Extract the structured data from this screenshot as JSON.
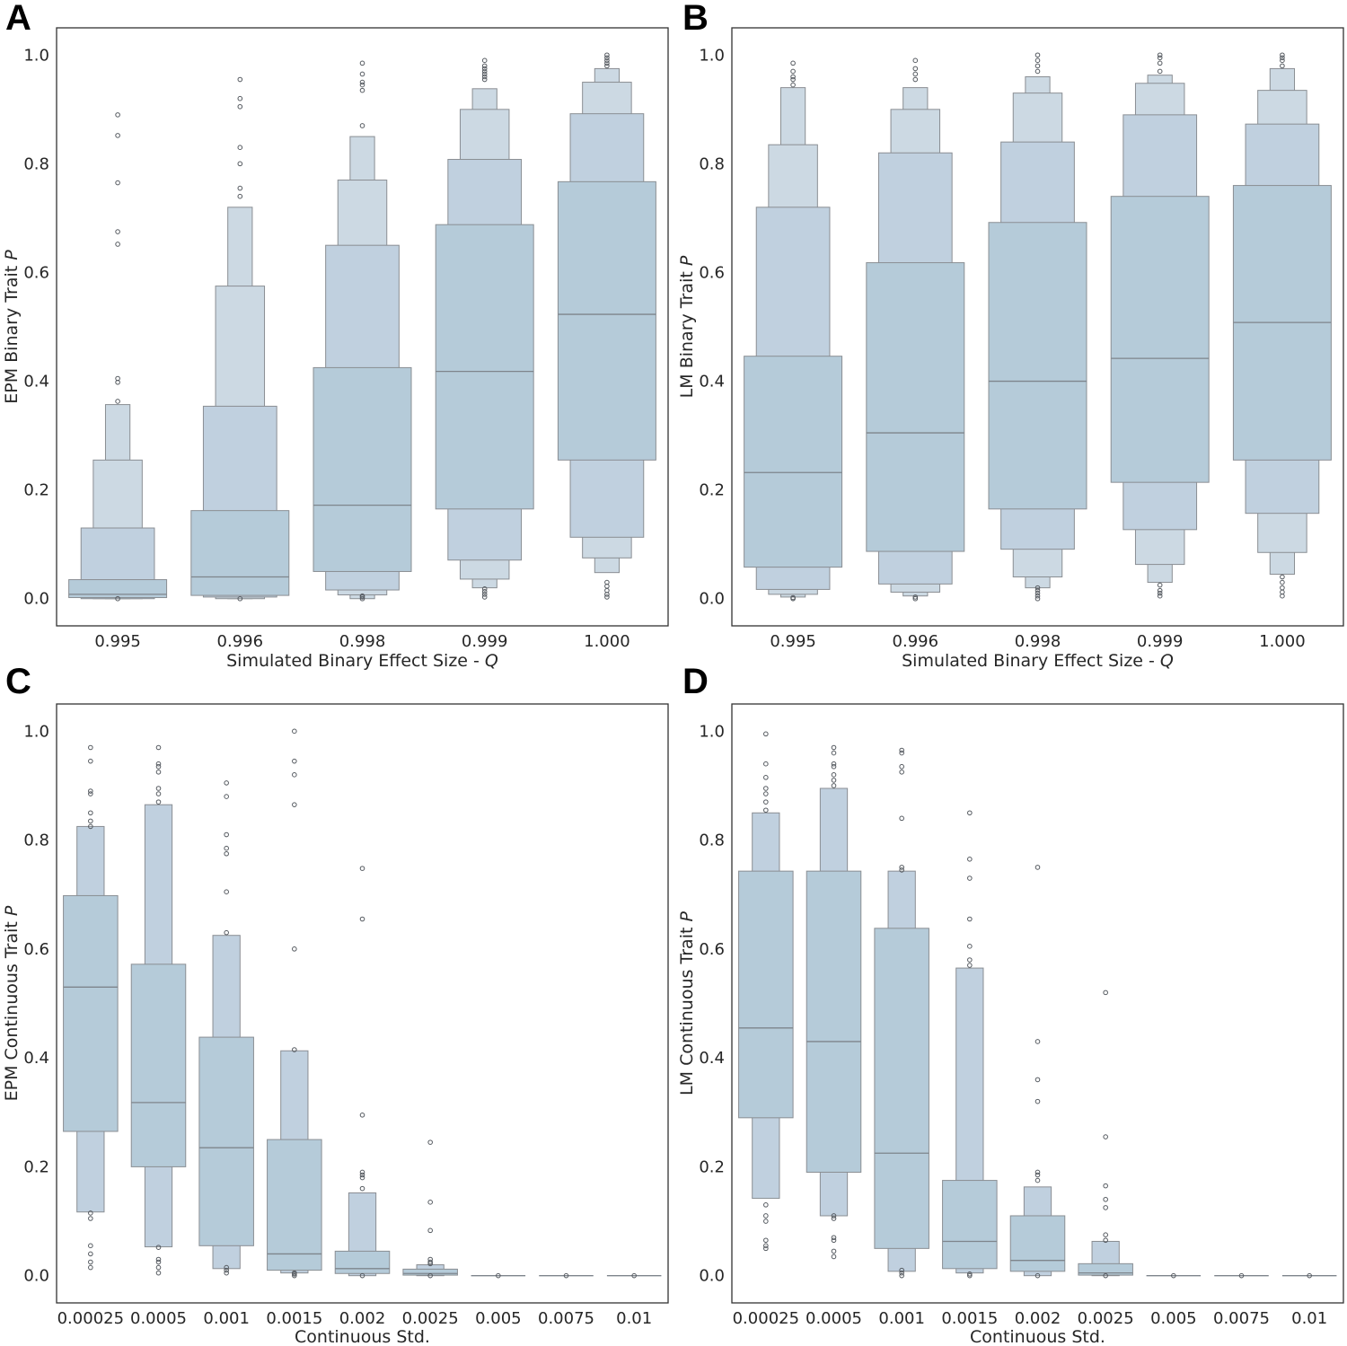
{
  "colors": {
    "box_outer": "#ccd9e3",
    "box_mid": "#c0d0df",
    "box_inner": "#b5cbd9",
    "edge": "#8a8e93",
    "median": "#7e858c",
    "frame": "#333333"
  },
  "chart_data": [
    {
      "panel": "A",
      "type": "boxen",
      "ylabel": "EPM Binary Trait P",
      "ylabel_main": "EPM Binary Trait ",
      "ylabel_var": "P",
      "xlabel_main": "Simulated Binary Effect Size - ",
      "xlabel_var": "Q",
      "ylim": [
        -0.05,
        1.05
      ],
      "yticks": [
        "0.0",
        "0.2",
        "0.4",
        "0.6",
        "0.8",
        "1.0"
      ],
      "categories": [
        "0.995",
        "0.996",
        "0.998",
        "0.999",
        "1.000"
      ],
      "boxes": [
        {
          "median": 0.008,
          "levels": [
            [
              0.002,
              0.035
            ],
            [
              0.0,
              0.13
            ],
            [
              0.0,
              0.255
            ],
            [
              0.0,
              0.357
            ]
          ],
          "outliers": [
            0.0,
            0.363,
            0.398,
            0.405,
            0.652,
            0.675,
            0.765,
            0.852,
            0.89
          ]
        },
        {
          "median": 0.04,
          "levels": [
            [
              0.006,
              0.162
            ],
            [
              0.003,
              0.354
            ],
            [
              0.0,
              0.575
            ],
            [
              0.0,
              0.72
            ]
          ],
          "outliers": [
            0.0,
            0.74,
            0.755,
            0.8,
            0.83,
            0.905,
            0.92,
            0.955
          ]
        },
        {
          "median": 0.172,
          "levels": [
            [
              0.05,
              0.425
            ],
            [
              0.016,
              0.65
            ],
            [
              0.007,
              0.77
            ],
            [
              0.0,
              0.85
            ]
          ],
          "outliers": [
            0.0,
            0.003,
            0.005,
            0.87,
            0.935,
            0.945,
            0.95,
            0.965,
            0.985
          ]
        },
        {
          "median": 0.418,
          "levels": [
            [
              0.165,
              0.688
            ],
            [
              0.071,
              0.808
            ],
            [
              0.036,
              0.9
            ],
            [
              0.02,
              0.938
            ]
          ],
          "outliers": [
            0.003,
            0.008,
            0.013,
            0.018,
            0.955,
            0.96,
            0.965,
            0.97,
            0.975,
            0.98,
            0.99
          ]
        },
        {
          "median": 0.523,
          "levels": [
            [
              0.255,
              0.767
            ],
            [
              0.113,
              0.892
            ],
            [
              0.075,
              0.95
            ],
            [
              0.048,
              0.975
            ]
          ],
          "outliers": [
            0.003,
            0.008,
            0.015,
            0.023,
            0.03,
            0.98,
            0.985,
            0.99,
            0.995,
            1.0
          ]
        }
      ]
    },
    {
      "panel": "B",
      "type": "boxen",
      "ylabel": "LM Binary Trait P",
      "ylabel_main": "LM Binary Trait ",
      "ylabel_var": "P",
      "xlabel_main": "Simulated Binary Effect Size - ",
      "xlabel_var": "Q",
      "ylim": [
        -0.05,
        1.05
      ],
      "yticks": [
        "0.0",
        "0.2",
        "0.4",
        "0.6",
        "0.8",
        "1.0"
      ],
      "categories": [
        "0.995",
        "0.996",
        "0.998",
        "0.999",
        "1.000"
      ],
      "boxes": [
        {
          "median": 0.232,
          "levels": [
            [
              0.058,
              0.446
            ],
            [
              0.017,
              0.72
            ],
            [
              0.008,
              0.835
            ],
            [
              0.003,
              0.94
            ]
          ],
          "outliers": [
            0.0,
            0.002,
            0.945,
            0.955,
            0.96,
            0.97,
            0.985
          ]
        },
        {
          "median": 0.305,
          "levels": [
            [
              0.087,
              0.618
            ],
            [
              0.027,
              0.82
            ],
            [
              0.012,
              0.9
            ],
            [
              0.005,
              0.94
            ]
          ],
          "outliers": [
            0.0,
            0.003,
            0.955,
            0.965,
            0.975,
            0.99
          ]
        },
        {
          "median": 0.4,
          "levels": [
            [
              0.165,
              0.692
            ],
            [
              0.091,
              0.84
            ],
            [
              0.04,
              0.93
            ],
            [
              0.02,
              0.96
            ]
          ],
          "outliers": [
            0.0,
            0.005,
            0.01,
            0.015,
            0.02,
            0.97,
            0.98,
            0.99,
            1.0
          ]
        },
        {
          "median": 0.442,
          "levels": [
            [
              0.214,
              0.74
            ],
            [
              0.127,
              0.89
            ],
            [
              0.063,
              0.948
            ],
            [
              0.03,
              0.963
            ]
          ],
          "outliers": [
            0.005,
            0.01,
            0.015,
            0.025,
            0.97,
            0.985,
            0.995,
            1.0
          ]
        },
        {
          "median": 0.508,
          "levels": [
            [
              0.255,
              0.76
            ],
            [
              0.157,
              0.873
            ],
            [
              0.085,
              0.935
            ],
            [
              0.045,
              0.975
            ]
          ],
          "outliers": [
            0.005,
            0.012,
            0.02,
            0.03,
            0.04,
            0.98,
            0.99,
            0.995,
            1.0
          ]
        }
      ]
    },
    {
      "panel": "C",
      "type": "boxen",
      "ylabel": "EPM Continuous Trait P",
      "ylabel_main": "EPM Continuous Trait ",
      "ylabel_var": "P",
      "xlabel_main": "Continuous Std.",
      "xlabel_var": "",
      "ylim": [
        -0.05,
        1.05
      ],
      "yticks": [
        "0.0",
        "0.2",
        "0.4",
        "0.6",
        "0.8",
        "1.0"
      ],
      "categories": [
        "0.00025",
        "0.0005",
        "0.001",
        "0.0015",
        "0.002",
        "0.0025",
        "0.005",
        "0.0075",
        "0.01"
      ],
      "boxes": [
        {
          "median": 0.53,
          "levels": [
            [
              0.265,
              0.698
            ],
            [
              0.117,
              0.825
            ]
          ],
          "outliers": [
            0.015,
            0.025,
            0.04,
            0.055,
            0.105,
            0.115,
            0.825,
            0.835,
            0.85,
            0.885,
            0.89,
            0.945,
            0.97
          ]
        },
        {
          "median": 0.318,
          "levels": [
            [
              0.2,
              0.572
            ],
            [
              0.053,
              0.865
            ]
          ],
          "outliers": [
            0.005,
            0.015,
            0.025,
            0.03,
            0.052,
            0.87,
            0.885,
            0.895,
            0.925,
            0.935,
            0.94,
            0.97
          ]
        },
        {
          "median": 0.235,
          "levels": [
            [
              0.055,
              0.438
            ],
            [
              0.013,
              0.625
            ]
          ],
          "outliers": [
            0.005,
            0.01,
            0.015,
            0.63,
            0.705,
            0.775,
            0.785,
            0.81,
            0.88,
            0.905
          ]
        },
        {
          "median": 0.04,
          "levels": [
            [
              0.01,
              0.25
            ],
            [
              0.005,
              0.413
            ]
          ],
          "outliers": [
            0.0,
            0.003,
            0.005,
            0.415,
            0.6,
            0.865,
            0.92,
            0.945,
            1.0
          ]
        },
        {
          "median": 0.013,
          "levels": [
            [
              0.004,
              0.045
            ],
            [
              0.0,
              0.152
            ]
          ],
          "outliers": [
            0.0,
            0.16,
            0.18,
            0.185,
            0.19,
            0.295,
            0.655,
            0.748
          ]
        },
        {
          "median": 0.004,
          "levels": [
            [
              0.001,
              0.012
            ],
            [
              0.0,
              0.02
            ]
          ],
          "outliers": [
            0.0,
            0.022,
            0.025,
            0.03,
            0.083,
            0.135,
            0.245
          ]
        },
        {
          "median": 0.0,
          "levels": [],
          "outliers": [
            0.0
          ]
        },
        {
          "median": 0.0,
          "levels": [],
          "outliers": [
            0.0
          ]
        },
        {
          "median": 0.0,
          "levels": [],
          "outliers": [
            0.0
          ]
        }
      ]
    },
    {
      "panel": "D",
      "type": "boxen",
      "ylabel": "LM Continuous Trait P",
      "ylabel_main": "LM Continuous Trait ",
      "ylabel_var": "P",
      "xlabel_main": "Continuous Std.",
      "xlabel_var": "",
      "ylim": [
        -0.05,
        1.05
      ],
      "yticks": [
        "0.0",
        "0.2",
        "0.4",
        "0.6",
        "0.8",
        "1.0"
      ],
      "categories": [
        "0.00025",
        "0.0005",
        "0.001",
        "0.0015",
        "0.002",
        "0.0025",
        "0.005",
        "0.0075",
        "0.01"
      ],
      "boxes": [
        {
          "median": 0.455,
          "levels": [
            [
              0.29,
              0.743
            ],
            [
              0.142,
              0.85
            ]
          ],
          "outliers": [
            0.05,
            0.055,
            0.065,
            0.1,
            0.11,
            0.13,
            0.855,
            0.87,
            0.885,
            0.895,
            0.915,
            0.94,
            0.995
          ]
        },
        {
          "median": 0.43,
          "levels": [
            [
              0.19,
              0.743
            ],
            [
              0.11,
              0.895
            ]
          ],
          "outliers": [
            0.035,
            0.045,
            0.065,
            0.07,
            0.105,
            0.11,
            0.9,
            0.91,
            0.92,
            0.935,
            0.94,
            0.96,
            0.97
          ]
        },
        {
          "median": 0.225,
          "levels": [
            [
              0.05,
              0.638
            ],
            [
              0.008,
              0.743
            ]
          ],
          "outliers": [
            0.0,
            0.005,
            0.01,
            0.745,
            0.75,
            0.84,
            0.925,
            0.935,
            0.96,
            0.965
          ]
        },
        {
          "median": 0.063,
          "levels": [
            [
              0.013,
              0.175
            ],
            [
              0.005,
              0.565
            ]
          ],
          "outliers": [
            0.0,
            0.003,
            0.57,
            0.58,
            0.605,
            0.655,
            0.73,
            0.765,
            0.85
          ]
        },
        {
          "median": 0.028,
          "levels": [
            [
              0.008,
              0.11
            ],
            [
              0.0,
              0.163
            ]
          ],
          "outliers": [
            0.0,
            0.175,
            0.185,
            0.19,
            0.32,
            0.36,
            0.43,
            0.75
          ]
        },
        {
          "median": 0.005,
          "levels": [
            [
              0.001,
              0.022
            ],
            [
              0.0,
              0.063
            ]
          ],
          "outliers": [
            0.0,
            0.065,
            0.075,
            0.125,
            0.14,
            0.165,
            0.255,
            0.52
          ]
        },
        {
          "median": 0.0,
          "levels": [],
          "outliers": [
            0.0
          ]
        },
        {
          "median": 0.0,
          "levels": [],
          "outliers": [
            0.0
          ]
        },
        {
          "median": 0.0,
          "levels": [],
          "outliers": [
            0.0
          ]
        }
      ]
    }
  ]
}
